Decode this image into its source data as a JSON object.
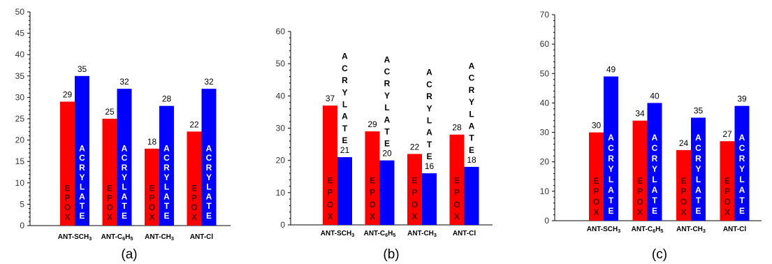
{
  "colors": {
    "epox": "#ff0000",
    "acrylate": "#0000ff",
    "axis": "#000000",
    "tick_text": "#333333"
  },
  "chart_data": [
    {
      "type": "bar",
      "panel_label": "(a)",
      "categories": [
        "ANT-SCH3",
        "ANT-C6H5",
        "ANT-CH3",
        "ANT-Cl"
      ],
      "ylim": [
        0,
        50
      ],
      "yticks": [
        0,
        5,
        10,
        15,
        20,
        25,
        30,
        35,
        40,
        45,
        50
      ],
      "grid": false,
      "series": [
        {
          "name": "EPOX",
          "values": [
            29,
            25,
            18,
            22
          ]
        },
        {
          "name": "ACRYLATE",
          "values": [
            35,
            32,
            28,
            32
          ]
        }
      ]
    },
    {
      "type": "bar",
      "panel_label": "(b)",
      "categories": [
        "ANT-SCH3",
        "ANT-C6H5",
        "ANT-CH3",
        "ANT-Cl"
      ],
      "ylim": [
        0,
        60
      ],
      "yticks": [
        0,
        10,
        20,
        30,
        40,
        50,
        60
      ],
      "grid": false,
      "series": [
        {
          "name": "EPOX",
          "values": [
            37,
            29,
            22,
            28
          ]
        },
        {
          "name": "ACRYLATE",
          "values": [
            21,
            20,
            16,
            18
          ]
        }
      ]
    },
    {
      "type": "bar",
      "panel_label": "(c)",
      "categories": [
        "ANT-SCH3",
        "ANT-C6H5",
        "ANT-CH3",
        "ANT-Cl"
      ],
      "ylim": [
        0,
        70
      ],
      "yticks": [
        0,
        10,
        20,
        30,
        40,
        50,
        60,
        70
      ],
      "grid": false,
      "series": [
        {
          "name": "EPOX",
          "values": [
            30,
            34,
            24,
            27
          ]
        },
        {
          "name": "ACRYLATE",
          "values": [
            49,
            40,
            35,
            39
          ]
        }
      ]
    }
  ]
}
